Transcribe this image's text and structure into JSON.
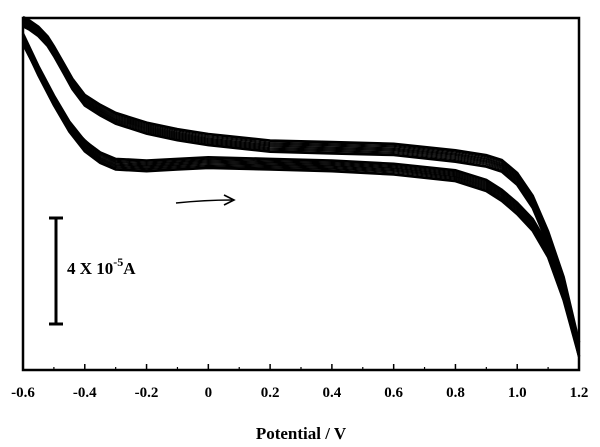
{
  "chart_data": {
    "type": "line",
    "title": "",
    "xlabel": "Potential / V",
    "ylabel": "",
    "xlim": [
      -0.6,
      1.2
    ],
    "x_ticks": [
      "-0.6",
      "-0.4",
      "-0.2",
      "0",
      "0.2",
      "0.4",
      "0.6",
      "0.8",
      "1.0",
      "1.2"
    ],
    "y_ticks_labeled": false,
    "grid": false,
    "cycles_overlaid": "multiple repetitive cyclic voltammetry scans",
    "upper_branch": {
      "x": [
        -0.6,
        -0.58,
        -0.55,
        -0.52,
        -0.5,
        -0.47,
        -0.44,
        -0.4,
        -0.35,
        -0.3,
        -0.2,
        -0.1,
        0.0,
        0.2,
        0.4,
        0.6,
        0.8,
        0.9,
        0.95,
        1.0,
        1.05,
        1.1,
        1.15,
        1.2
      ],
      "y": [
        1.0,
        0.99,
        0.97,
        0.94,
        0.91,
        0.86,
        0.81,
        0.76,
        0.73,
        0.705,
        0.675,
        0.655,
        0.64,
        0.62,
        0.615,
        0.61,
        0.59,
        0.575,
        0.56,
        0.52,
        0.45,
        0.34,
        0.2,
        0.0
      ]
    },
    "lower_branch": {
      "x": [
        1.2,
        1.15,
        1.1,
        1.05,
        1.0,
        0.95,
        0.9,
        0.8,
        0.6,
        0.4,
        0.2,
        0.0,
        -0.1,
        -0.2,
        -0.3,
        -0.35,
        -0.4,
        -0.45,
        -0.5,
        -0.55,
        -0.6
      ],
      "y": [
        0.0,
        0.17,
        0.3,
        0.38,
        0.43,
        0.47,
        0.5,
        0.53,
        0.55,
        0.56,
        0.565,
        0.57,
        0.565,
        0.56,
        0.565,
        0.585,
        0.62,
        0.68,
        0.76,
        0.85,
        0.95
      ]
    },
    "annotations": {
      "scan_arrow": "rightward",
      "scale_bar_label": {
        "prefix": "4 X 10",
        "exponent": "-5",
        "unit": "A"
      }
    }
  },
  "colors": {
    "line": "#000000",
    "background": "#ffffff"
  }
}
